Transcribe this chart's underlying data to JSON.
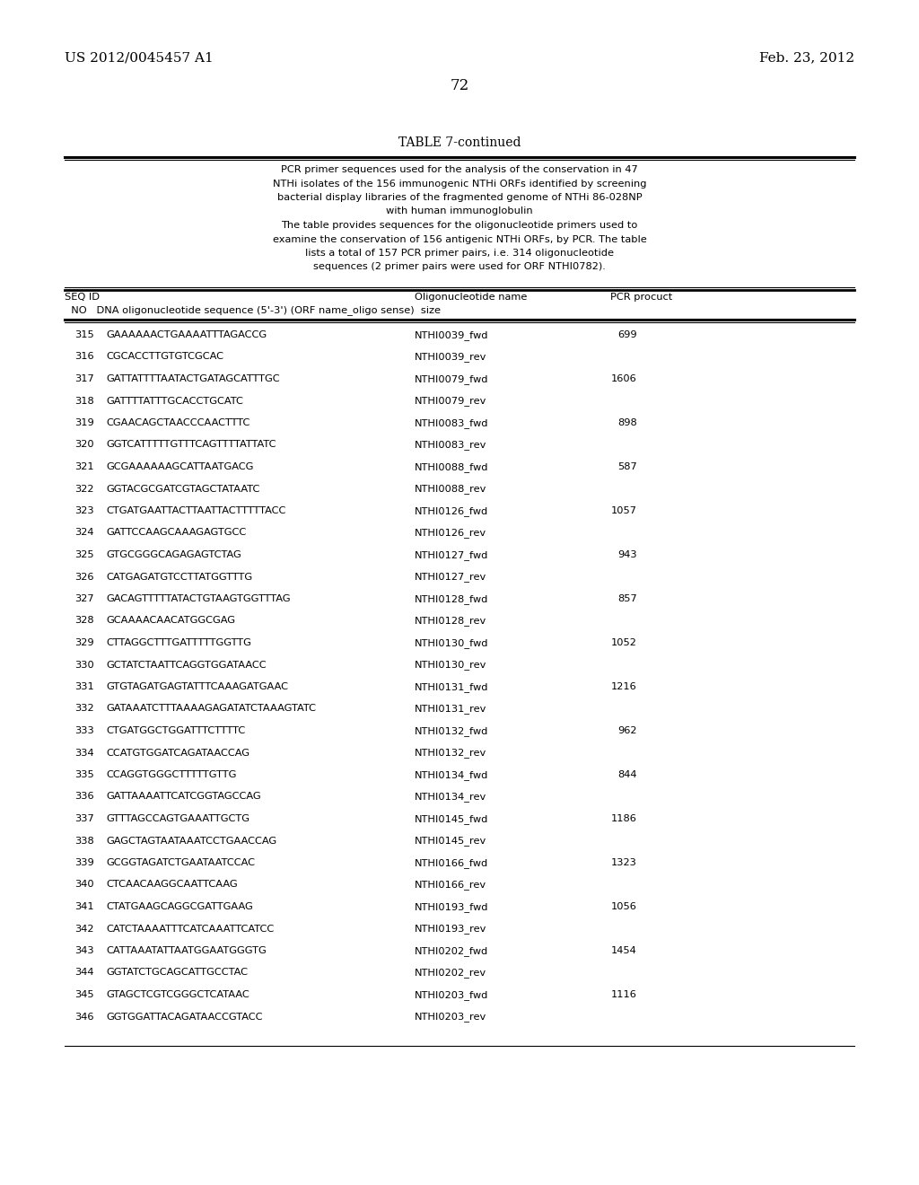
{
  "header_left": "US 2012/0045457 A1",
  "header_right": "Feb. 23, 2012",
  "page_number": "72",
  "table_title": "TABLE 7-continued",
  "description_lines": [
    "PCR primer sequences used for the analysis of the conservation in 47",
    "NTHi isolates of the 156 immunogenic NTHi ORFs identified by screening",
    "bacterial display libraries of the fragmented genome of NTHi 86-028NP",
    "with human immunoglobulin",
    "The table provides sequences for the oligonucleotide primers used to",
    "examine the conservation of 156 antigenic NTHi ORFs, by PCR. The table",
    "lists a total of 157 PCR primer pairs, i.e. 314 oligonucleotide",
    "sequences (2 primer pairs were used for ORF NTHI0782)."
  ],
  "rows": [
    [
      "315",
      "GAAAAAACTGAAAATTTAGACCG",
      "NTHI0039_fwd",
      "699"
    ],
    [
      "316",
      "CGCACCTTGTGTCGCAC",
      "NTHI0039_rev",
      ""
    ],
    [
      "317",
      "GATTATTTTAATACTGATAGCATTTGC",
      "NTHI0079_fwd",
      "1606"
    ],
    [
      "318",
      "GATTTTATTTGCACCTGCATC",
      "NTHI0079_rev",
      ""
    ],
    [
      "319",
      "CGAACAGCTAACCCAACTTTC",
      "NTHI0083_fwd",
      "898"
    ],
    [
      "320",
      "GGTCATTTTTGTTTCAGTTTTATTATC",
      "NTHI0083_rev",
      ""
    ],
    [
      "321",
      "GCGAAAAAAGCATTAATGACG",
      "NTHI0088_fwd",
      "587"
    ],
    [
      "322",
      "GGTACGCGATCGTAGCTATAATC",
      "NTHI0088_rev",
      ""
    ],
    [
      "323",
      "CTGATGAATTACTTAATTACTTTTTACC",
      "NTHI0126_fwd",
      "1057"
    ],
    [
      "324",
      "GATTCCAAGCAAAGAGTGCC",
      "NTHI0126_rev",
      ""
    ],
    [
      "325",
      "GTGCGGGCAGAGAGTCTAG",
      "NTHI0127_fwd",
      "943"
    ],
    [
      "326",
      "CATGAGATGTCCTTATGGTTTG",
      "NTHI0127_rev",
      ""
    ],
    [
      "327",
      "GACAGTTTTTATACTGTAAGTGGTTTAG",
      "NTHI0128_fwd",
      "857"
    ],
    [
      "328",
      "GCAAAACAACATGGCGAG",
      "NTHI0128_rev",
      ""
    ],
    [
      "329",
      "CTTAGGCTTTGATTTTTGGTTG",
      "NTHI0130_fwd",
      "1052"
    ],
    [
      "330",
      "GCTATCTAATTCAGGTGGATAACC",
      "NTHI0130_rev",
      ""
    ],
    [
      "331",
      "GTGTAGATGAGTATTTCAAAGATGAAC",
      "NTHI0131_fwd",
      "1216"
    ],
    [
      "332",
      "GATAAATCTTTAAAAGAGATATCTAAAGTATC",
      "NTHI0131_rev",
      ""
    ],
    [
      "333",
      "CTGATGGCTGGATTTCTTTTC",
      "NTHI0132_fwd",
      "962"
    ],
    [
      "334",
      "CCATGTGGATCAGATAACCAG",
      "NTHI0132_rev",
      ""
    ],
    [
      "335",
      "CCAGGTGGGCTTTTTGTTG",
      "NTHI0134_fwd",
      "844"
    ],
    [
      "336",
      "GATTAAAATTCATCGGTAGCCAG",
      "NTHI0134_rev",
      ""
    ],
    [
      "337",
      "GTTTAGCCAGTGAAATTGCTG",
      "NTHI0145_fwd",
      "1186"
    ],
    [
      "338",
      "GAGCTAGTAATAAATCCTGAACCAG",
      "NTHI0145_rev",
      ""
    ],
    [
      "339",
      "GCGGTAGATCTGAATAATCCAC",
      "NTHI0166_fwd",
      "1323"
    ],
    [
      "340",
      "CTCAACAAGGCAATTCAAG",
      "NTHI0166_rev",
      ""
    ],
    [
      "341",
      "CTATGAAGCAGGCGATTGAAG",
      "NTHI0193_fwd",
      "1056"
    ],
    [
      "342",
      "CATCTAAAATTTCATCAAATTCATCC",
      "NTHI0193_rev",
      ""
    ],
    [
      "343",
      "CATTAAATATTAATGGAATGGGTG",
      "NTHI0202_fwd",
      "1454"
    ],
    [
      "344",
      "GGTATCTGCAGCATTGCCTAC",
      "NTHI0202_rev",
      ""
    ],
    [
      "345",
      "GTAGCTCGTCGGGCTCATAAC",
      "NTHI0203_fwd",
      "1116"
    ],
    [
      "346",
      "GGTGGATTACAGATAACCGTACC",
      "NTHI0203_rev",
      ""
    ]
  ],
  "background_color": "#ffffff",
  "text_color": "#000000"
}
